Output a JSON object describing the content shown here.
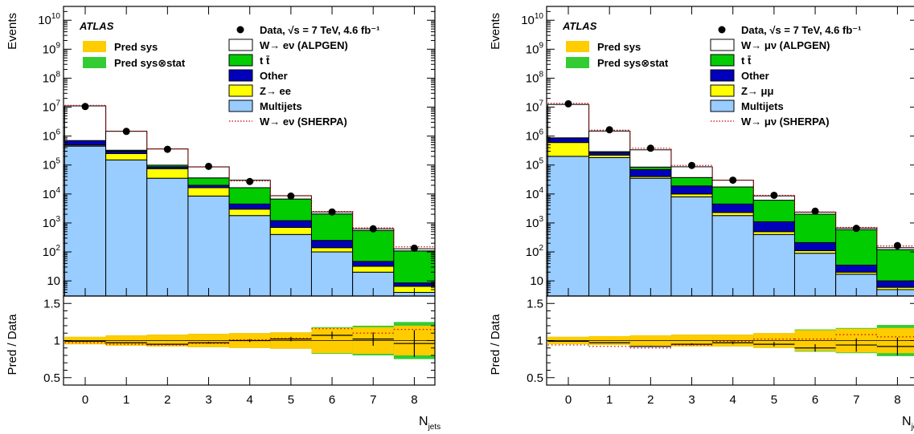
{
  "chart_data": [
    {
      "type": "histogram",
      "experiment": "ATLAS",
      "ylabel_top": "Events",
      "ylabel_bottom": "Pred / Data",
      "xlabel": "N",
      "xlabel_sub": "jets",
      "y_scale": "log",
      "ylim_top": [
        3,
        30000000000
      ],
      "ylim_bottom": [
        0.4,
        1.6
      ],
      "x_ticks": [
        "0",
        "1",
        "2",
        "3",
        "4",
        "5",
        "6",
        "7",
        "8"
      ],
      "y_tick_labels_top": [
        {
          "value": 10,
          "base": "10",
          "exp": ""
        },
        {
          "value": 100,
          "base": "10",
          "exp": "2"
        },
        {
          "value": 1000,
          "base": "10",
          "exp": "3"
        },
        {
          "value": 10000,
          "base": "10",
          "exp": "4"
        },
        {
          "value": 100000,
          "base": "10",
          "exp": "5"
        },
        {
          "value": 1000000,
          "base": "10",
          "exp": "6"
        },
        {
          "value": 10000000,
          "base": "10",
          "exp": "7"
        },
        {
          "value": 100000000,
          "base": "10",
          "exp": "8"
        },
        {
          "value": 1000000000,
          "base": "10",
          "exp": "9"
        },
        {
          "value": 10000000000,
          "base": "10",
          "exp": "10"
        }
      ],
      "y_tick_labels_bottom": [
        "0.5",
        "1",
        "1.5"
      ],
      "legend_left": [
        {
          "label": "Pred sys",
          "color": "#ffcc00"
        },
        {
          "label": "Pred sys⊗stat",
          "color": "#33cc33"
        }
      ],
      "legend_right": [
        {
          "kind": "marker",
          "label": "Data, √s = 7 TeV, 4.6 fb⁻¹"
        },
        {
          "kind": "box",
          "label": "W→ eν (ALPGEN)",
          "color": "#ffffff"
        },
        {
          "kind": "box",
          "label": "t t̄",
          "color": "#00cc00"
        },
        {
          "kind": "box",
          "label": "Other",
          "color": "#0000bb"
        },
        {
          "kind": "box",
          "label": "Z→ ee",
          "color": "#ffff00"
        },
        {
          "kind": "box",
          "label": "Multijets",
          "color": "#99ccff"
        },
        {
          "kind": "line",
          "label": "W→ eν (SHERPA)",
          "color": "#cc0000"
        }
      ],
      "series": [
        {
          "name": "Multijets",
          "color": "#99ccff",
          "values": [
            450000,
            150000,
            35000,
            8500,
            1800,
            400,
            100,
            20,
            4
          ]
        },
        {
          "name": "Z→ ee",
          "color": "#ffff00",
          "values": [
            40000,
            100000,
            40000,
            8000,
            1200,
            300,
            40,
            12,
            2.5
          ]
        },
        {
          "name": "Other",
          "color": "#0000bb",
          "values": [
            200000,
            50000,
            12000,
            3500,
            1500,
            500,
            110,
            15,
            2
          ]
        },
        {
          "name": "t t̄",
          "color": "#00cc00",
          "values": [
            10000,
            25000,
            12000,
            16000,
            12000,
            5500,
            1800,
            500,
            100
          ]
        },
        {
          "name": "W→ eν (ALPGEN)",
          "color": "#ffffff",
          "values": [
            10300000,
            1150000,
            260000,
            50000,
            13500,
            2000,
            350,
            80,
            20
          ]
        }
      ],
      "sherpa": [
        11500000,
        1450000,
        360000,
        87000,
        28000,
        8800,
        2500,
        680,
        150
      ],
      "data": [
        10500000,
        1450000,
        350000,
        90000,
        27000,
        8500,
        2400,
        630,
        135
      ],
      "ratio": [
        0.99,
        0.97,
        0.95,
        0.97,
        1.0,
        1.02,
        1.07,
        1.02,
        0.96
      ],
      "ratio_err": [
        0.004,
        0.005,
        0.008,
        0.012,
        0.02,
        0.03,
        0.05,
        0.09,
        0.18
      ],
      "sherpa_ratio": [
        0.97,
        0.95,
        0.94,
        0.96,
        1.01,
        1.03,
        1.16,
        1.1,
        1.15
      ],
      "sys_band": [
        0.05,
        0.07,
        0.08,
        0.09,
        0.1,
        0.11,
        0.17,
        0.18,
        0.2
      ],
      "tot_band": [
        0.05,
        0.07,
        0.08,
        0.09,
        0.1,
        0.11,
        0.18,
        0.2,
        0.25
      ]
    },
    {
      "type": "histogram",
      "experiment": "ATLAS",
      "ylabel_top": "Events",
      "ylabel_bottom": "Pred / Data",
      "xlabel": "N",
      "xlabel_sub": "jets",
      "y_scale": "log",
      "ylim_top": [
        3,
        30000000000
      ],
      "ylim_bottom": [
        0.4,
        1.6
      ],
      "x_ticks": [
        "0",
        "1",
        "2",
        "3",
        "4",
        "5",
        "6",
        "7",
        "8"
      ],
      "y_tick_labels_top": [
        {
          "value": 10,
          "base": "10",
          "exp": ""
        },
        {
          "value": 100,
          "base": "10",
          "exp": "2"
        },
        {
          "value": 1000,
          "base": "10",
          "exp": "3"
        },
        {
          "value": 10000,
          "base": "10",
          "exp": "4"
        },
        {
          "value": 100000,
          "base": "10",
          "exp": "5"
        },
        {
          "value": 1000000,
          "base": "10",
          "exp": "6"
        },
        {
          "value": 10000000,
          "base": "10",
          "exp": "7"
        },
        {
          "value": 100000000,
          "base": "10",
          "exp": "8"
        },
        {
          "value": 1000000000,
          "base": "10",
          "exp": "9"
        },
        {
          "value": 10000000000,
          "base": "10",
          "exp": "10"
        }
      ],
      "y_tick_labels_bottom": [
        "0.5",
        "1",
        "1.5"
      ],
      "legend_left": [
        {
          "label": "Pred sys",
          "color": "#ffcc00"
        },
        {
          "label": "Pred sys⊗stat",
          "color": "#33cc33"
        }
      ],
      "legend_right": [
        {
          "kind": "marker",
          "label": "Data, √s = 7 TeV, 4.6 fb⁻¹"
        },
        {
          "kind": "box",
          "label": "W→ μν (ALPGEN)",
          "color": "#ffffff"
        },
        {
          "kind": "box",
          "label": "t t̄",
          "color": "#00cc00"
        },
        {
          "kind": "box",
          "label": "Other",
          "color": "#0000bb"
        },
        {
          "kind": "box",
          "label": "Z→ μμ",
          "color": "#ffff00"
        },
        {
          "kind": "box",
          "label": "Multijets",
          "color": "#99ccff"
        },
        {
          "kind": "line",
          "label": "W→ μν (SHERPA)",
          "color": "#cc0000"
        }
      ],
      "series": [
        {
          "name": "Multijets",
          "color": "#99ccff",
          "values": [
            200000,
            180000,
            35000,
            8000,
            1800,
            400,
            90,
            17,
            5
          ]
        },
        {
          "name": "Z→ μμ",
          "color": "#ffff00",
          "values": [
            400000,
            40000,
            5000,
            2000,
            500,
            100,
            20,
            3,
            1
          ]
        },
        {
          "name": "Other",
          "color": "#0000bb",
          "values": [
            250000,
            50000,
            30000,
            9000,
            2200,
            600,
            100,
            15,
            4
          ]
        },
        {
          "name": "t t̄",
          "color": "#00cc00",
          "values": [
            20000,
            20000,
            15000,
            18000,
            13000,
            5000,
            1800,
            550,
            110
          ]
        },
        {
          "name": "W→ μν (ALPGEN)",
          "color": "#ffffff",
          "values": [
            11500000,
            1200000,
            250000,
            50000,
            12500,
            2500,
            350,
            80,
            20
          ]
        }
      ],
      "sherpa": [
        13500000,
        1600000,
        380000,
        97000,
        30000,
        9000,
        2400,
        700,
        160
      ],
      "data": [
        13000000,
        1650000,
        380000,
        97000,
        30000,
        9000,
        2550,
        650,
        165
      ],
      "ratio": [
        0.99,
        0.97,
        0.92,
        0.95,
        0.97,
        0.95,
        0.9,
        0.94,
        0.92
      ],
      "ratio_err": [
        0.004,
        0.005,
        0.008,
        0.012,
        0.02,
        0.03,
        0.05,
        0.09,
        0.12
      ],
      "sherpa_ratio": [
        0.94,
        0.92,
        0.9,
        0.94,
        0.99,
        1.02,
        1.02,
        1.08,
        1.05
      ],
      "sys_band": [
        0.05,
        0.06,
        0.07,
        0.08,
        0.08,
        0.1,
        0.14,
        0.16,
        0.17
      ],
      "tot_band": [
        0.05,
        0.06,
        0.07,
        0.08,
        0.08,
        0.1,
        0.15,
        0.17,
        0.21
      ]
    }
  ]
}
